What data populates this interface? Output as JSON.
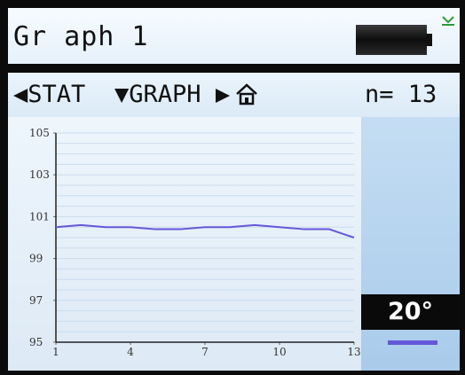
{
  "window": {
    "title": "Gr aph 1"
  },
  "status": {
    "battery_icon": "battery-icon",
    "usb_icon": "usb-connected-icon"
  },
  "menu": {
    "stat_label": "◀STAT",
    "graph_label": "▼GRAPH",
    "next_label": "▶",
    "home_icon": "home-icon",
    "count_label": "n= 13"
  },
  "legend": {
    "temperature_label": "20°",
    "series_color": "#6657d9"
  },
  "chart_data": {
    "type": "line",
    "x": [
      1,
      2,
      3,
      4,
      5,
      6,
      7,
      8,
      9,
      10,
      11,
      12,
      12.5,
      13
    ],
    "x_ticks": [
      "1",
      "4",
      "7",
      "10",
      "13"
    ],
    "y_ticks": [
      "95",
      "97",
      "99",
      "101",
      "103",
      "105"
    ],
    "xlim": [
      1,
      13
    ],
    "ylim": [
      95,
      105
    ],
    "grid": true,
    "series": [
      {
        "values": [
          100.5,
          100.6,
          100.5,
          100.5,
          100.4,
          100.4,
          100.5,
          100.5,
          100.6,
          100.5,
          100.4,
          100.4,
          100.2,
          100.0
        ],
        "color": "#6657d9"
      }
    ]
  }
}
